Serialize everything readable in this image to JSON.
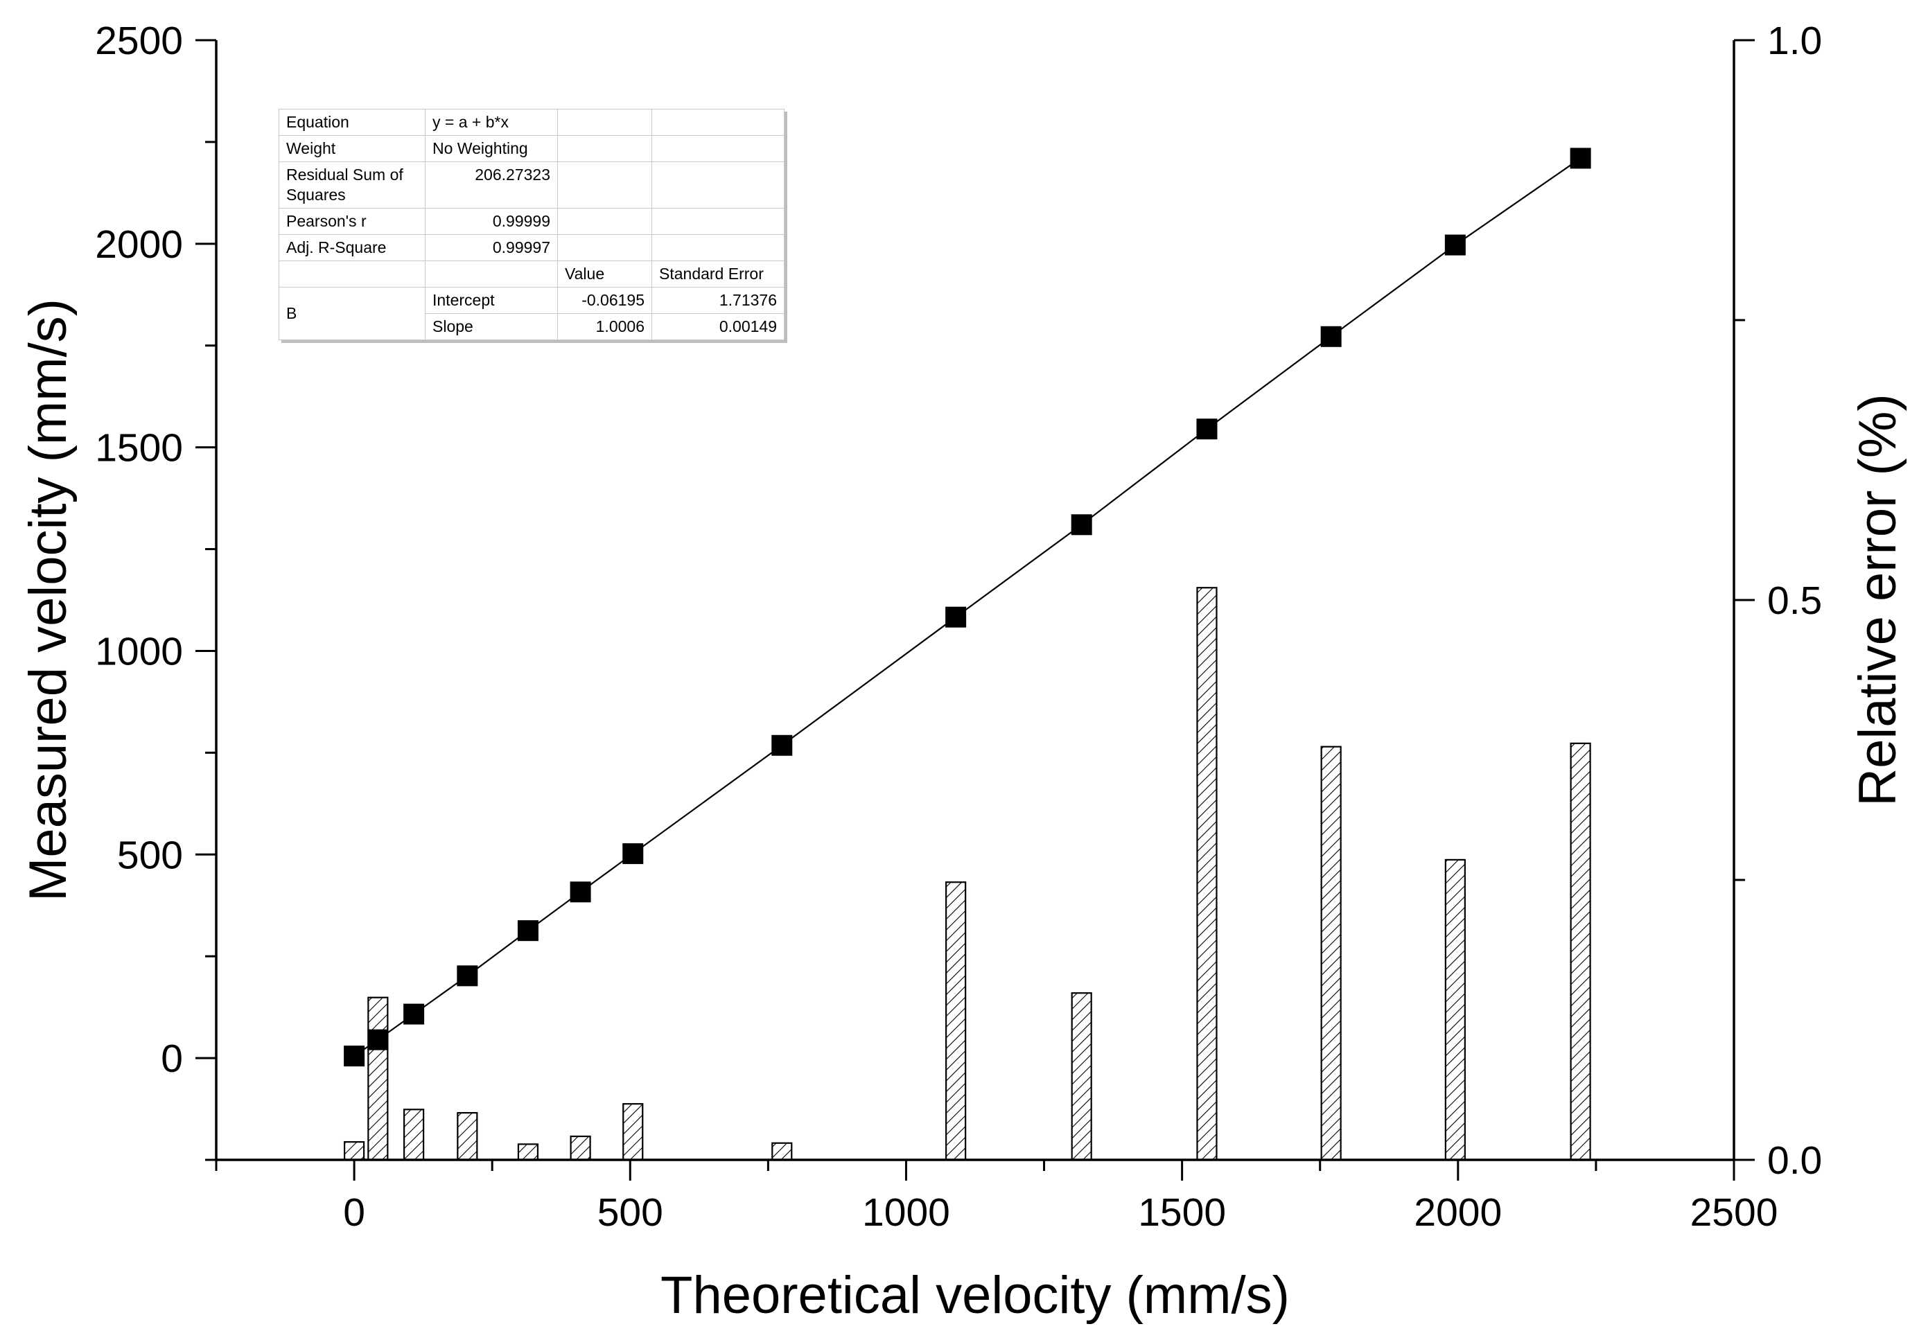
{
  "chart_data": {
    "type": "bar+scatter",
    "xlabel": "Theoretical velocity (mm/s)",
    "ylabel": "Measured velocity (mm/s)",
    "y2label": "Relative error (%)",
    "xlim": [
      -250,
      2500
    ],
    "ylim": [
      -250,
      2500
    ],
    "y2lim": [
      0.0,
      1.0
    ],
    "x_ticks": [
      0,
      500,
      1000,
      1500,
      2000,
      2500
    ],
    "y_ticks": [
      0,
      500,
      1000,
      1500,
      2000,
      2500
    ],
    "y2_ticks": [
      0.0,
      0.5,
      1.0
    ],
    "y2_tick_labels": [
      "0.0",
      "0.5",
      "1.0"
    ],
    "series": [
      {
        "name": "Measured velocity",
        "kind": "scatter-line",
        "axis": "left",
        "x": [
          0,
          43,
          108,
          205,
          315,
          410,
          505,
          775,
          1090,
          1318,
          1545,
          1770,
          1995,
          2222
        ],
        "y": [
          5,
          45,
          108,
          202,
          313,
          408,
          502,
          768,
          1083,
          1310,
          1545,
          1772,
          1997,
          2210
        ]
      },
      {
        "name": "Relative error",
        "kind": "bar",
        "axis": "right",
        "pattern": "hatched",
        "x": [
          0,
          43,
          108,
          205,
          315,
          410,
          505,
          775,
          1090,
          1318,
          1545,
          1770,
          1995,
          2222
        ],
        "values": [
          0.016,
          0.145,
          0.045,
          0.042,
          0.014,
          0.021,
          0.05,
          0.015,
          0.248,
          0.149,
          0.511,
          0.369,
          0.268,
          0.372
        ]
      }
    ]
  },
  "fit_table": {
    "rows": [
      [
        "Equation",
        "y = a + b*x",
        "",
        ""
      ],
      [
        "Weight",
        "No Weighting",
        "",
        ""
      ],
      [
        "Residual Sum of Squares",
        "206.27323",
        "",
        ""
      ],
      [
        "Pearson's r",
        "0.99999",
        "",
        ""
      ],
      [
        "Adj. R-Square",
        "0.99997",
        "",
        ""
      ]
    ],
    "header": [
      "",
      "",
      "Value",
      "Standard Error"
    ],
    "group_label": "B",
    "params": [
      [
        "Intercept",
        "-0.06195",
        "1.71376"
      ],
      [
        "Slope",
        "1.0006",
        "0.00149"
      ]
    ]
  }
}
